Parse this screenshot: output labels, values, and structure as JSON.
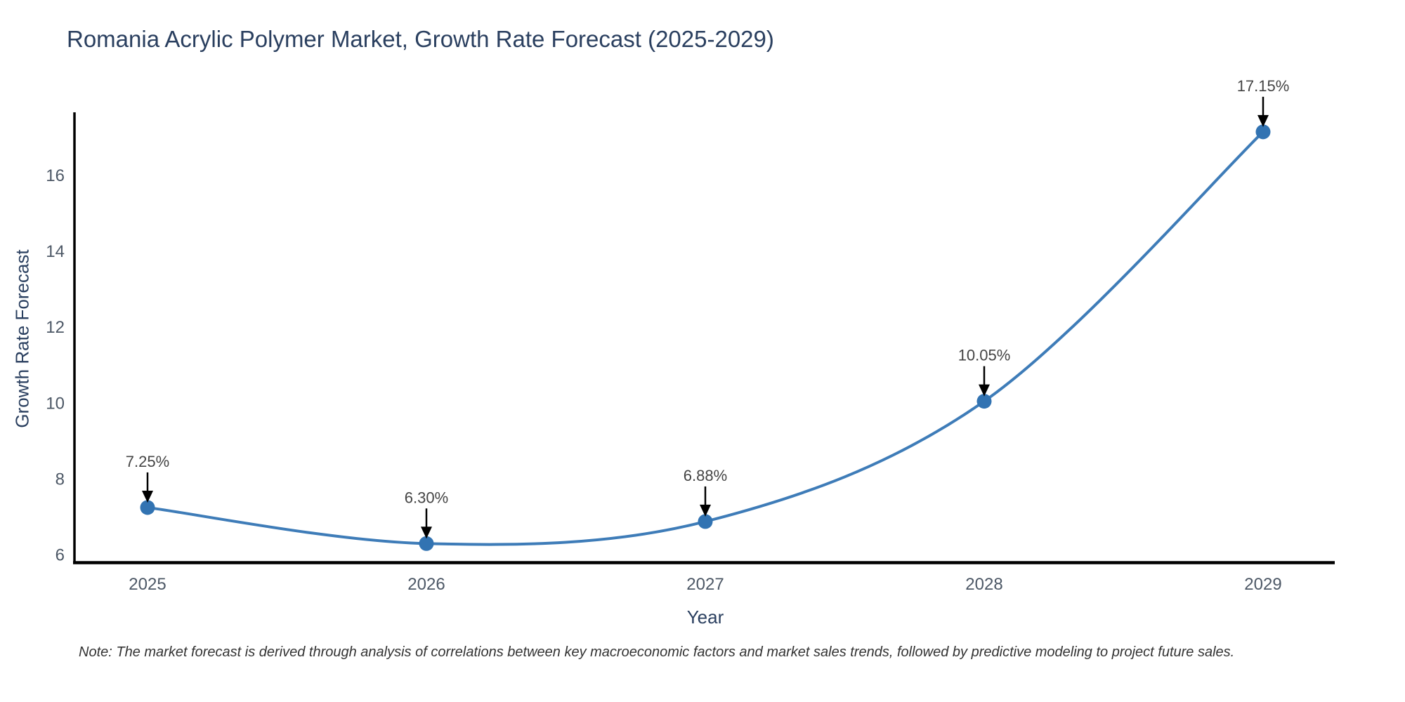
{
  "title": {
    "text": "Romania Acrylic Polymer Market, Growth Rate Forecast (2025-2029)"
  },
  "note": {
    "text": "Note: The market forecast is derived through analysis of correlations between key macroeconomic factors and market sales trends, followed by predictive modeling to project future sales."
  },
  "chart_data": {
    "type": "line",
    "line_shape": "spline",
    "title": "Romania Acrylic Polymer Market, Growth Rate Forecast (2025-2029)",
    "xlabel": "Year",
    "ylabel": "Growth Rate Forecast",
    "x": [
      2025,
      2026,
      2027,
      2028,
      2029
    ],
    "xticklabels": [
      "2025",
      "2026",
      "2027",
      "2028",
      "2029"
    ],
    "values": [
      7.25,
      6.3,
      6.88,
      10.05,
      17.15
    ],
    "point_labels": [
      "7.25%",
      "6.30%",
      "6.88%",
      "10.05%",
      "17.15%"
    ],
    "yticks": [
      6,
      8,
      10,
      12,
      14,
      16
    ],
    "ylim": [
      5.79,
      17.66
    ],
    "xlim": [
      2024.74,
      2029.26
    ],
    "grid": false,
    "legend": "none",
    "annotations": "black-arrow-down-to-each-point",
    "colors": {
      "line": "#3e7cb8",
      "marker": "#3273b2",
      "axis_line": "#000000",
      "arrow": "#000000",
      "title_text": "#2a3f5f",
      "axis_title_text": "#2a3f5f",
      "tick_text": "#4d5866",
      "annotation_text": "#444444",
      "note_text": "#333333",
      "background": "#ffffff"
    }
  }
}
